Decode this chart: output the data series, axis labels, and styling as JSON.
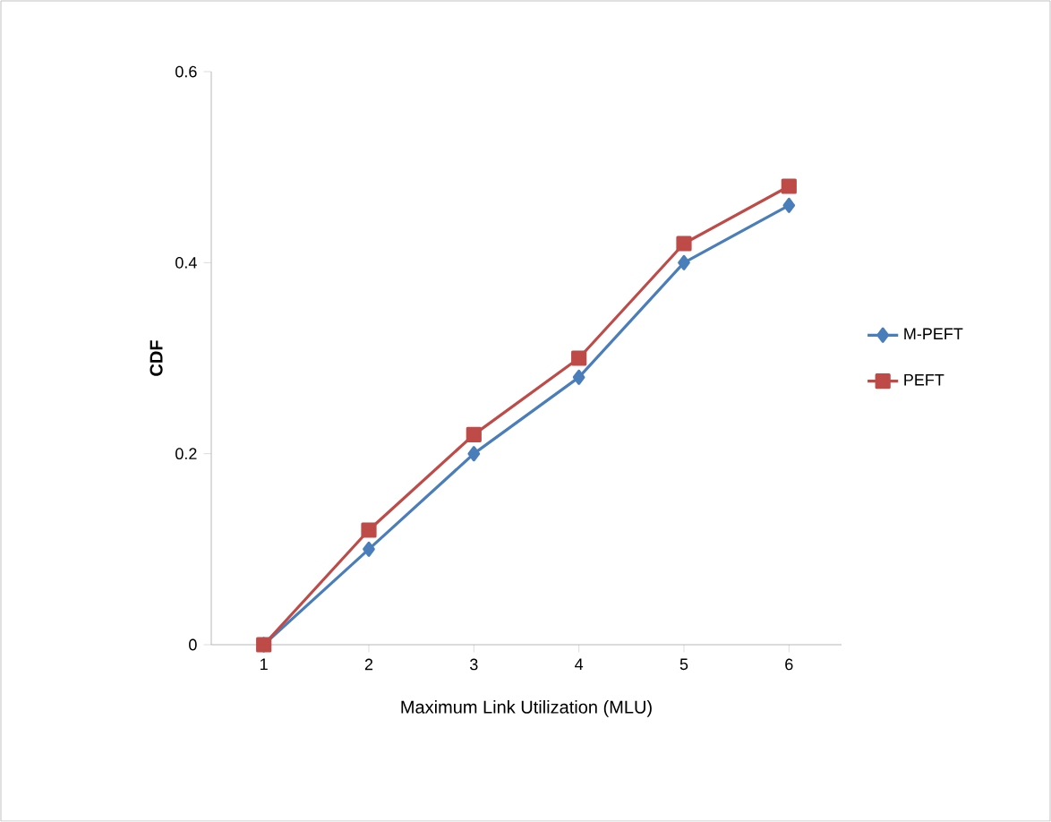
{
  "chart_data": {
    "type": "line",
    "xlabel": "Maximum Link Utilization (MLU)",
    "ylabel": "CDF",
    "categories": [
      "1",
      "2",
      "3",
      "4",
      "5",
      "6"
    ],
    "series": [
      {
        "name": "M-PEFT",
        "color": "#4a7ebb",
        "marker": "diamond",
        "values": [
          0,
          0.1,
          0.2,
          0.28,
          0.4,
          0.46
        ]
      },
      {
        "name": "PEFT",
        "color": "#be4b48",
        "marker": "square",
        "values": [
          0,
          0.12,
          0.22,
          0.3,
          0.42,
          0.48
        ]
      }
    ],
    "ylim": [
      0,
      0.6
    ],
    "yticks": [
      0,
      0.2,
      0.4,
      0.6
    ],
    "grid": false,
    "legend": "right",
    "line_style": "solid"
  }
}
